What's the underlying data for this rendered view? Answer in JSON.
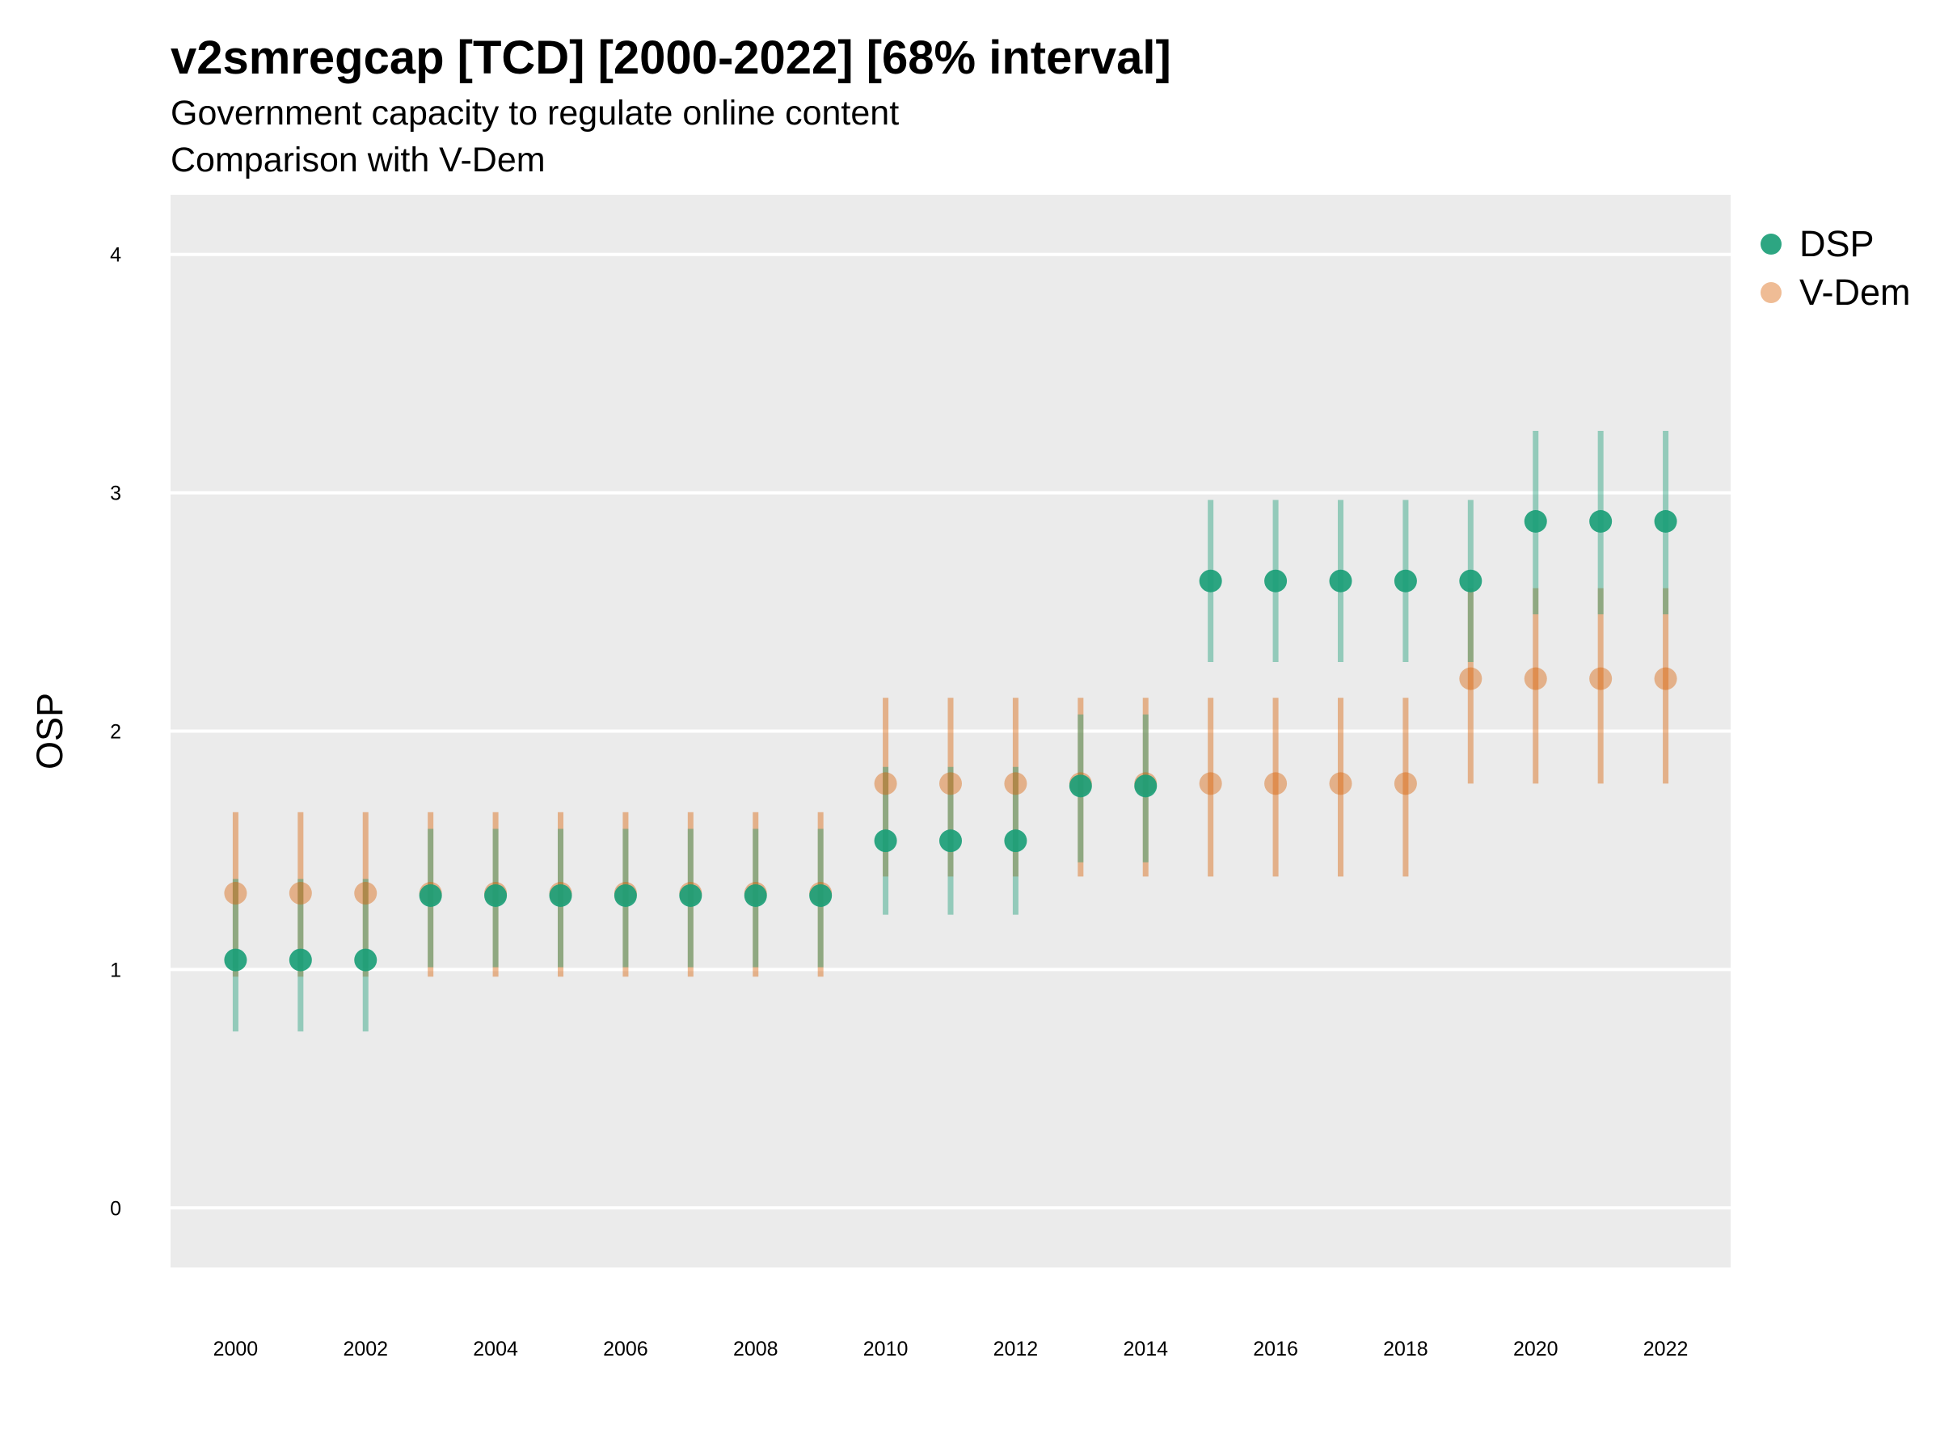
{
  "chart_data": {
    "type": "scatter",
    "title": "v2smregcap [TCD] [2000-2022] [68% interval]",
    "subtitle": [
      "Government capacity to regulate online content",
      "Comparison with V-Dem"
    ],
    "xlabel": "",
    "ylabel": "OSP",
    "xlim": [
      1999,
      2023
    ],
    "ylim": [
      -0.25,
      4.25
    ],
    "yticks": [
      0,
      1,
      2,
      3,
      4
    ],
    "xticks": [
      2000,
      2002,
      2004,
      2006,
      2008,
      2010,
      2012,
      2014,
      2016,
      2018,
      2020,
      2022
    ],
    "grid": true,
    "legend_position": "right",
    "interval": "68%",
    "series": [
      {
        "name": "DSP",
        "color": "#1b9e77",
        "x": [
          2000,
          2001,
          2002,
          2003,
          2004,
          2005,
          2006,
          2007,
          2008,
          2009,
          2010,
          2011,
          2012,
          2013,
          2014,
          2015,
          2016,
          2017,
          2018,
          2019,
          2020,
          2021,
          2022
        ],
        "y": [
          1.04,
          1.04,
          1.04,
          1.31,
          1.31,
          1.31,
          1.31,
          1.31,
          1.31,
          1.31,
          1.54,
          1.54,
          1.54,
          1.77,
          1.77,
          2.63,
          2.63,
          2.63,
          2.63,
          2.63,
          2.88,
          2.88,
          2.88
        ],
        "lower": [
          0.74,
          0.74,
          0.74,
          1.01,
          1.01,
          1.01,
          1.01,
          1.01,
          1.01,
          1.01,
          1.23,
          1.23,
          1.23,
          1.45,
          1.45,
          2.29,
          2.29,
          2.29,
          2.29,
          2.29,
          2.49,
          2.49,
          2.49
        ],
        "upper": [
          1.38,
          1.38,
          1.38,
          1.59,
          1.59,
          1.59,
          1.59,
          1.59,
          1.59,
          1.59,
          1.85,
          1.85,
          1.85,
          2.07,
          2.07,
          2.97,
          2.97,
          2.97,
          2.97,
          2.97,
          3.26,
          3.26,
          3.26
        ]
      },
      {
        "name": "V-Dem",
        "color": "#d95f02",
        "x": [
          2000,
          2001,
          2002,
          2003,
          2004,
          2005,
          2006,
          2007,
          2008,
          2009,
          2010,
          2011,
          2012,
          2013,
          2014,
          2015,
          2016,
          2017,
          2018,
          2019,
          2020,
          2021,
          2022
        ],
        "y": [
          1.32,
          1.32,
          1.32,
          1.32,
          1.32,
          1.32,
          1.32,
          1.32,
          1.32,
          1.32,
          1.78,
          1.78,
          1.78,
          1.78,
          1.78,
          1.78,
          1.78,
          1.78,
          1.78,
          2.22,
          2.22,
          2.22,
          2.22
        ],
        "lower": [
          0.97,
          0.97,
          0.97,
          0.97,
          0.97,
          0.97,
          0.97,
          0.97,
          0.97,
          0.97,
          1.39,
          1.39,
          1.39,
          1.39,
          1.39,
          1.39,
          1.39,
          1.39,
          1.39,
          1.78,
          1.78,
          1.78,
          1.78
        ],
        "upper": [
          1.66,
          1.66,
          1.66,
          1.66,
          1.66,
          1.66,
          1.66,
          1.66,
          1.66,
          1.66,
          2.14,
          2.14,
          2.14,
          2.14,
          2.14,
          2.14,
          2.14,
          2.14,
          2.14,
          2.6,
          2.6,
          2.6,
          2.6
        ]
      }
    ]
  }
}
